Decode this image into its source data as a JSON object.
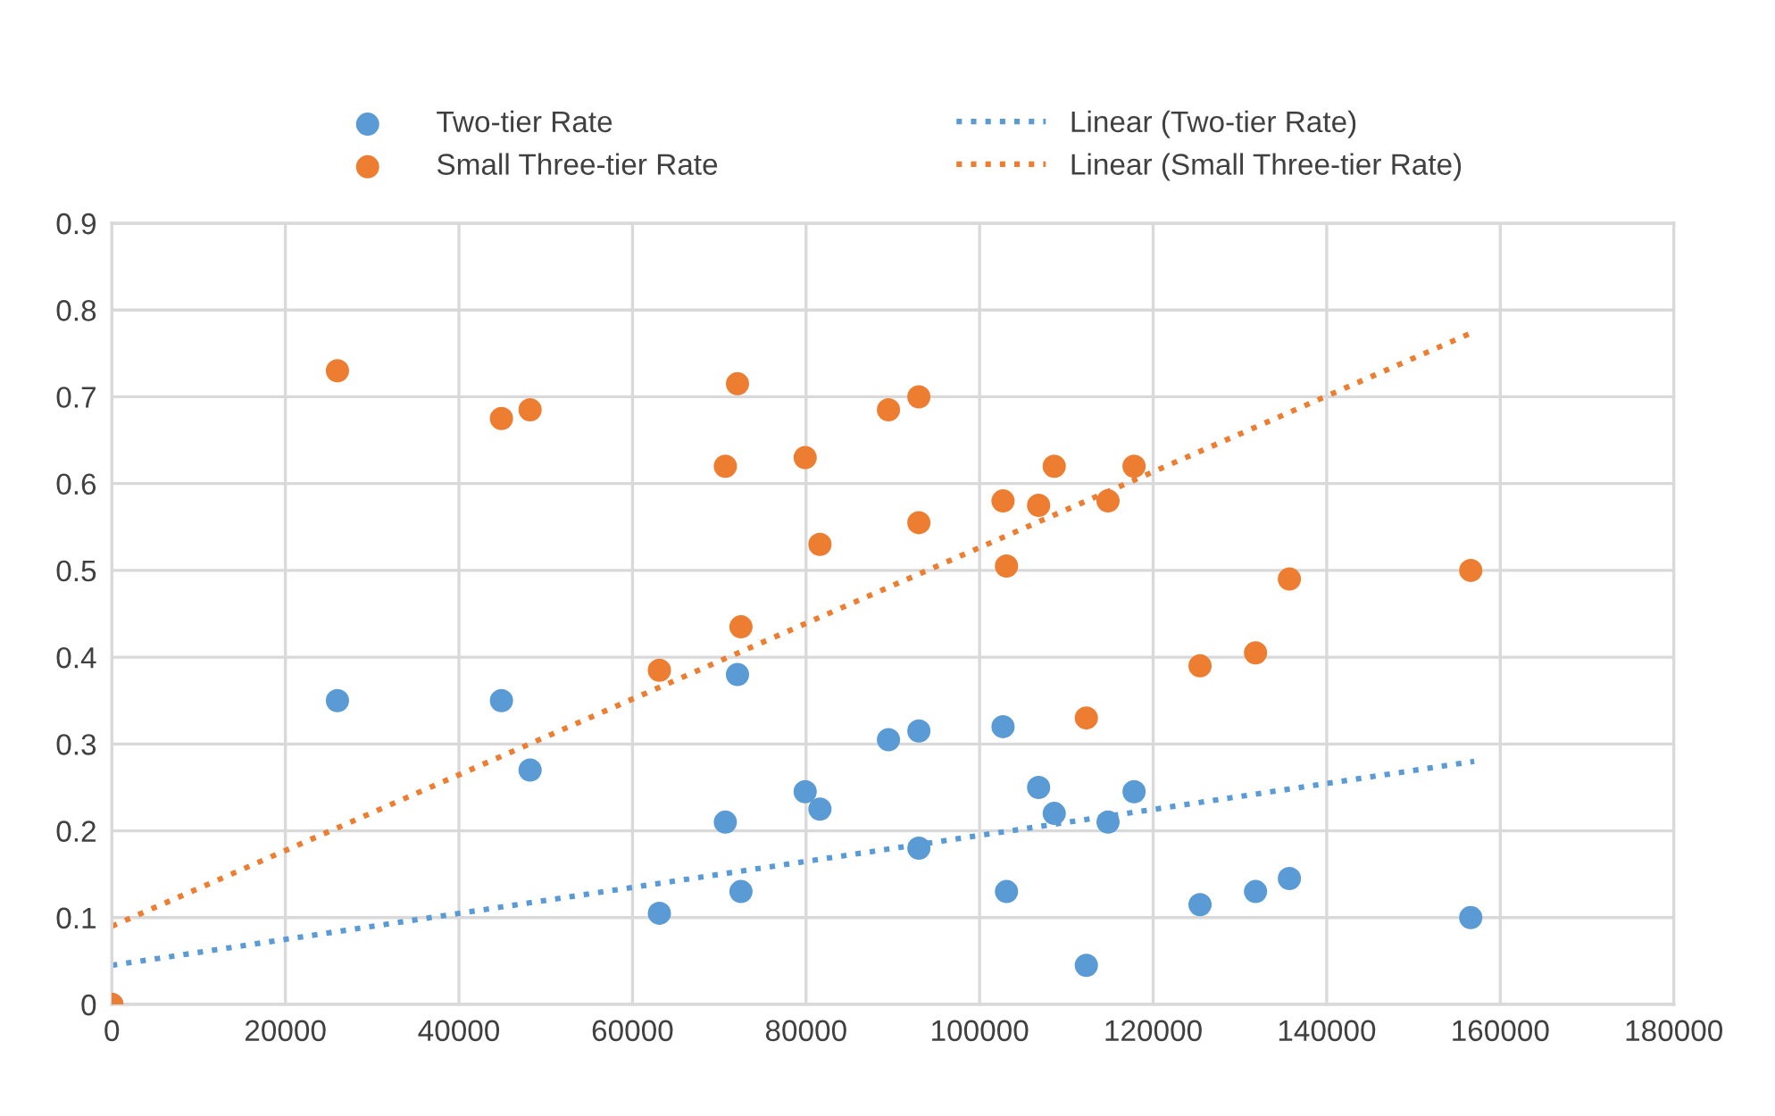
{
  "chart_data": {
    "type": "scatter",
    "xlim": [
      0,
      180000
    ],
    "xticks": [
      0,
      20000,
      40000,
      60000,
      80000,
      100000,
      120000,
      140000,
      160000,
      180000
    ],
    "ylim": [
      0,
      0.9
    ],
    "yticks": [
      0,
      0.1,
      0.2,
      0.3,
      0.4,
      0.5,
      0.6,
      0.7,
      0.8,
      0.9
    ],
    "grid": true,
    "legend": "top",
    "marker": "circle",
    "series": [
      {
        "name": "Two-tier Rate",
        "color": "#5b9bd5",
        "x": [
          0,
          26000,
          44900,
          48200,
          63100,
          70700,
          72100,
          72500,
          79900,
          81600,
          89500,
          93000,
          93000,
          102700,
          103100,
          106800,
          108600,
          112300,
          114800,
          117800,
          125400,
          131800,
          135700,
          156600
        ],
        "values": [
          0,
          0.35,
          0.35,
          0.27,
          0.105,
          0.21,
          0.38,
          0.13,
          0.245,
          0.225,
          0.305,
          0.315,
          0.18,
          0.32,
          0.13,
          0.25,
          0.22,
          0.045,
          0.21,
          0.245,
          0.115,
          0.13,
          0.145,
          0.1
        ]
      },
      {
        "name": "Small Three-tier Rate",
        "color": "#ed7d31",
        "x": [
          0,
          26000,
          44900,
          48200,
          63100,
          70700,
          72100,
          72500,
          79900,
          81600,
          89500,
          93000,
          93000,
          102700,
          103100,
          106800,
          108600,
          112300,
          114800,
          117800,
          125400,
          131800,
          135700,
          156600
        ],
        "values": [
          0,
          0.73,
          0.675,
          0.685,
          0.385,
          0.62,
          0.715,
          0.435,
          0.63,
          0.53,
          0.685,
          0.7,
          0.555,
          0.58,
          0.505,
          0.575,
          0.62,
          0.33,
          0.58,
          0.62,
          0.39,
          0.405,
          0.49,
          0.5
        ]
      },
      {
        "name": "Linear (Two-tier Rate)",
        "type": "line",
        "marker": "none",
        "line_style": "dotted",
        "color": "#5b9bd5",
        "x": [
          0,
          157000
        ],
        "values": [
          0.045,
          0.28
        ]
      },
      {
        "name": "Linear (Small Three-tier Rate)",
        "type": "line",
        "marker": "none",
        "line_style": "dotted",
        "color": "#ed7d31",
        "x": [
          0,
          157000
        ],
        "values": [
          0.09,
          0.775
        ]
      }
    ]
  }
}
